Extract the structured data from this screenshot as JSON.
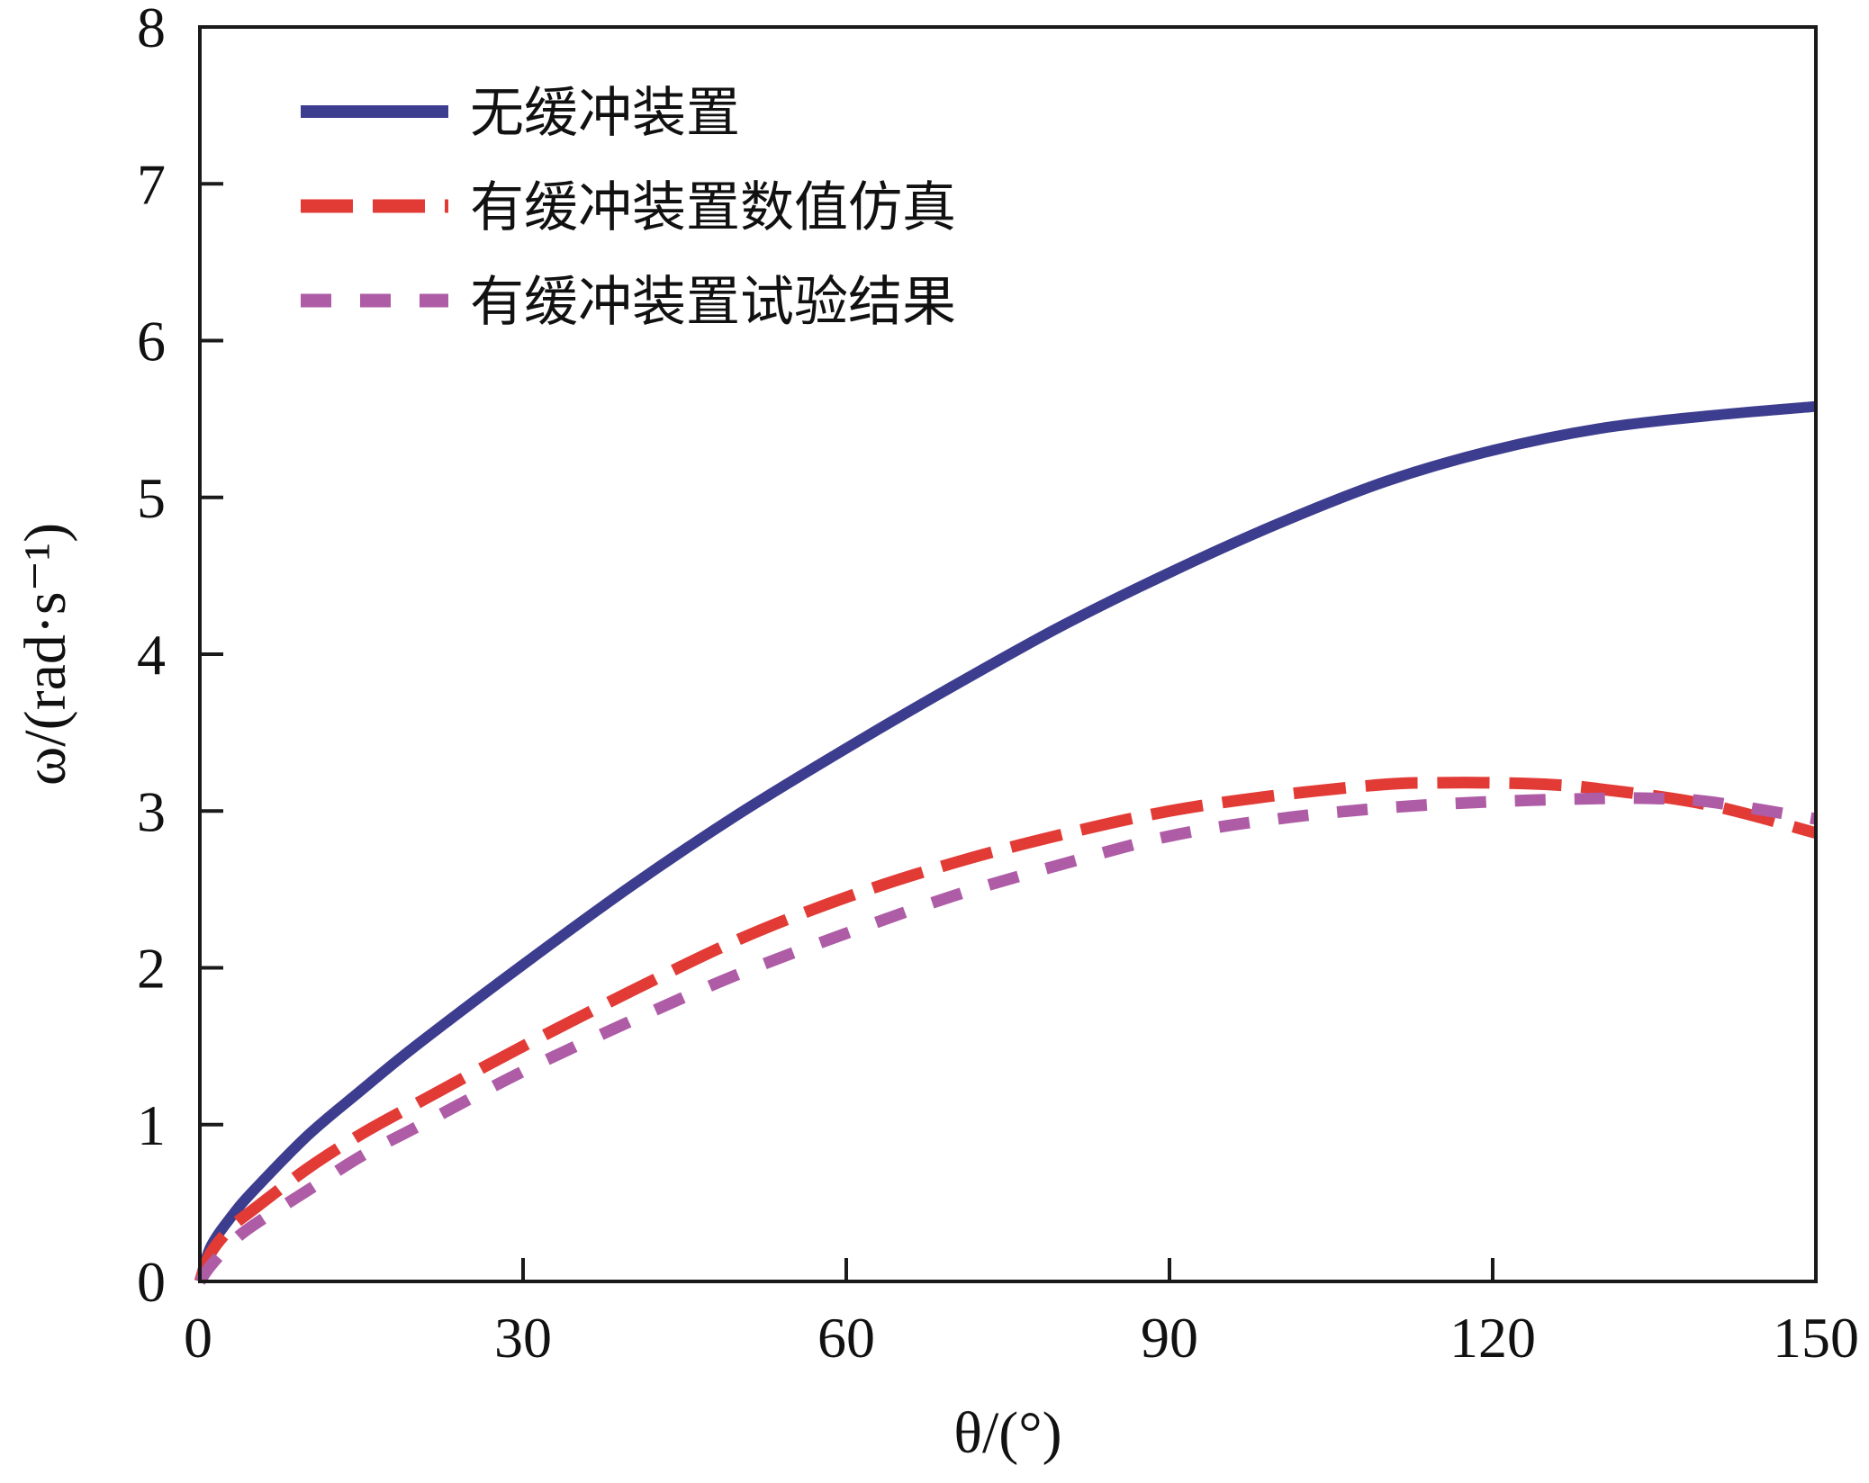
{
  "chart_data": {
    "type": "line",
    "xlabel": "θ/(°)",
    "ylabel": "ω/(rad·s⁻¹)",
    "xlim": [
      0,
      150
    ],
    "ylim": [
      0,
      8
    ],
    "xticks": [
      0,
      30,
      60,
      90,
      120,
      150
    ],
    "yticks": [
      0,
      1,
      2,
      3,
      4,
      5,
      6,
      7,
      8
    ],
    "grid": false,
    "legend_position": "top-left",
    "series": [
      {
        "name": "无缓冲装置",
        "color": "#3d3d8f",
        "style": "solid",
        "x": [
          0,
          1,
          3,
          5,
          10,
          15,
          20,
          30,
          40,
          50,
          60,
          70,
          80,
          90,
          100,
          110,
          120,
          130,
          140,
          150
        ],
        "y": [
          0.0,
          0.22,
          0.42,
          0.58,
          0.93,
          1.22,
          1.5,
          2.02,
          2.52,
          2.98,
          3.4,
          3.8,
          4.18,
          4.52,
          4.83,
          5.1,
          5.3,
          5.44,
          5.52,
          5.58
        ]
      },
      {
        "name": "有缓冲装置数值仿真",
        "color": "#e23a35",
        "style": "dashed",
        "x": [
          0,
          1,
          3,
          5,
          10,
          15,
          20,
          30,
          40,
          50,
          60,
          70,
          80,
          90,
          100,
          110,
          115,
          120,
          125,
          130,
          140,
          150
        ],
        "y": [
          0.0,
          0.18,
          0.35,
          0.46,
          0.72,
          0.94,
          1.13,
          1.5,
          1.85,
          2.18,
          2.45,
          2.67,
          2.85,
          3.0,
          3.1,
          3.17,
          3.18,
          3.18,
          3.17,
          3.14,
          3.04,
          2.86
        ]
      },
      {
        "name": "有缓冲装置试验结果",
        "color": "#ae5ca6",
        "style": "dashed",
        "x": [
          0,
          1,
          3,
          5,
          10,
          15,
          20,
          30,
          40,
          50,
          60,
          70,
          80,
          90,
          100,
          110,
          120,
          130,
          135,
          140,
          150
        ],
        "y": [
          0.0,
          0.1,
          0.25,
          0.36,
          0.58,
          0.8,
          0.98,
          1.34,
          1.66,
          1.96,
          2.22,
          2.46,
          2.66,
          2.84,
          2.95,
          3.02,
          3.06,
          3.08,
          3.08,
          3.06,
          2.95
        ]
      }
    ]
  }
}
